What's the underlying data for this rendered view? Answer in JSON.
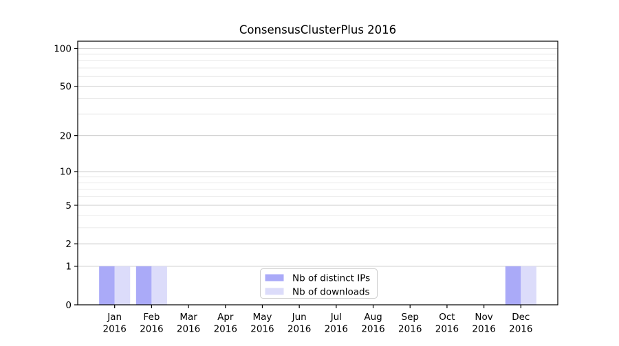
{
  "chart_data": {
    "type": "bar",
    "title": "ConsensusClusterPlus 2016",
    "categories": [
      "Jan 2016",
      "Feb 2016",
      "Mar 2016",
      "Apr 2016",
      "May 2016",
      "Jun 2016",
      "Jul 2016",
      "Aug 2016",
      "Sep 2016",
      "Oct 2016",
      "Nov 2016",
      "Dec 2016"
    ],
    "series": [
      {
        "name": "Nb of distinct IPs",
        "color": "#aaaaf8",
        "values": [
          1,
          1,
          0,
          0,
          0,
          0,
          0,
          0,
          0,
          0,
          0,
          1
        ]
      },
      {
        "name": "Nb of downloads",
        "color": "#dcdcfa",
        "values": [
          1,
          1,
          0,
          0,
          0,
          0,
          0,
          0,
          0,
          0,
          0,
          1
        ]
      }
    ],
    "xlabel": "",
    "ylabel": "",
    "yscale": "log1p",
    "ylim": [
      0,
      114
    ],
    "y_major_ticks": [
      0,
      1,
      2,
      5,
      10,
      20,
      50,
      100
    ],
    "y_minor_gridlines": [
      3,
      4,
      6,
      7,
      8,
      9,
      30,
      40,
      60,
      70,
      80,
      90
    ],
    "grid": "on",
    "legend_position": "bottom-center",
    "colors": {
      "axis": "#000000",
      "grid_major": "#cccccc",
      "grid_minor": "#ebebeb",
      "legend_border": "#cccccc",
      "background": "#ffffff",
      "text": "#000000"
    }
  }
}
